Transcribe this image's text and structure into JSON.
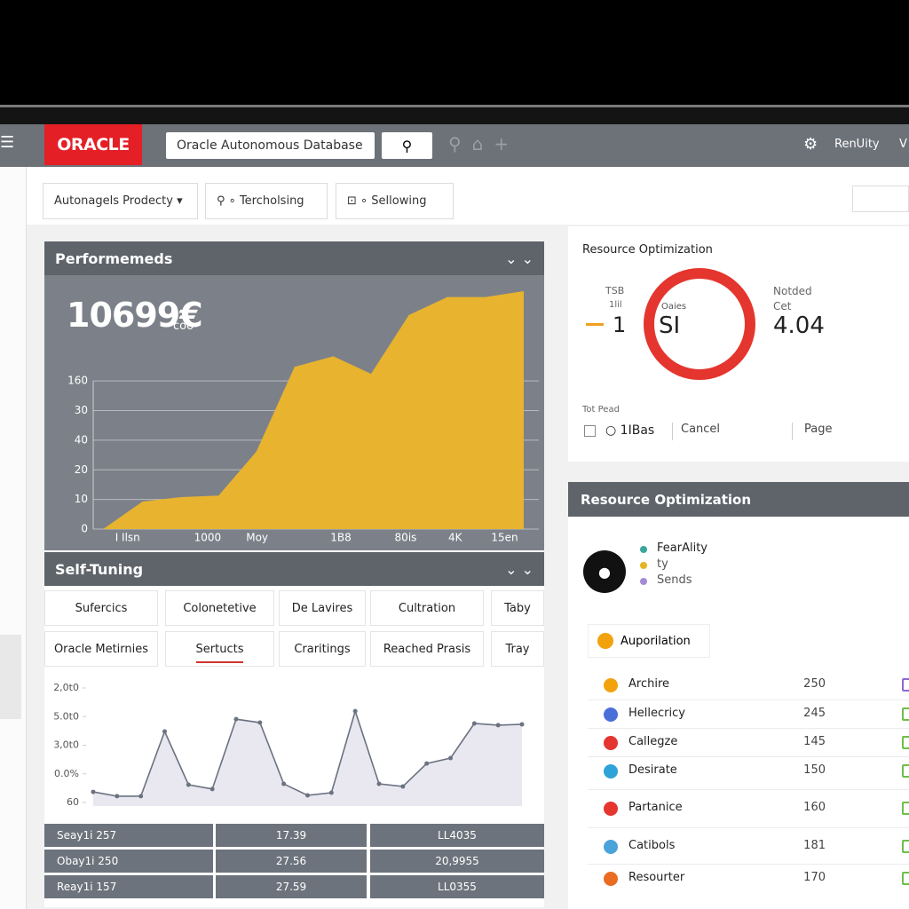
{
  "header": {
    "logo": "ORACLE",
    "search": "Oracle Autonomous Database",
    "user": "RenUity",
    "menu": "V"
  },
  "toolbar": {
    "items": [
      "Autonagels Prodecty",
      "Tercholsing",
      "Sellowing"
    ]
  },
  "performance": {
    "title": "Performemeds",
    "big_value": "10699€",
    "big_unit": "coo"
  },
  "chart_data": [
    {
      "type": "area",
      "color": "#e8b32e",
      "x": [
        0,
        1,
        2,
        3,
        4,
        5,
        6,
        7,
        8,
        9,
        10,
        11
      ],
      "values": [
        0,
        9,
        10.5,
        11,
        26,
        54.5,
        58,
        52,
        72,
        78,
        78,
        80
      ],
      "xlim": [
        0,
        11
      ],
      "ylim": [
        0,
        80
      ],
      "xticks": [
        {
          "value": 0.6,
          "label": "I Ilsn"
        },
        {
          "value": 2.7,
          "label": "1000"
        },
        {
          "value": 4,
          "label": "Moy"
        },
        {
          "value": 6.2,
          "label": "1B8"
        },
        {
          "value": 7.9,
          "label": "80is"
        },
        {
          "value": 9.2,
          "label": "4K"
        },
        {
          "value": 10.5,
          "label": "15en"
        }
      ],
      "yticks": [
        0,
        10,
        20,
        {
          "value": 30,
          "label": "40"
        },
        {
          "value": 40,
          "label": "30"
        },
        {
          "value": 50,
          "label": "160"
        }
      ],
      "grid": true
    },
    {
      "type": "line",
      "color": "#6b7280",
      "x": [
        0,
        1,
        2,
        3,
        4,
        5,
        6,
        7,
        8,
        9,
        10,
        11,
        12,
        13,
        14,
        15,
        16,
        17,
        18
      ],
      "values": [
        0.37,
        0.22,
        0.22,
        2.48,
        0.62,
        0.47,
        2.91,
        2.79,
        0.65,
        0.25,
        0.34,
        3.19,
        0.65,
        0.56,
        1.36,
        1.55,
        2.76,
        2.7,
        2.73
      ],
      "xlim": [
        0,
        18
      ],
      "ylim": [
        0,
        4
      ],
      "yticks": [
        {
          "value": 0,
          "label": "60"
        },
        {
          "value": 1,
          "label": "0.0%"
        },
        {
          "value": 2,
          "label": "3,0t0"
        },
        {
          "value": 3,
          "label": "5.0t0"
        },
        {
          "value": 4,
          "label": "2,0t0"
        }
      ],
      "grid": false
    }
  ],
  "self_tuning": {
    "title": "Self-Tuning",
    "tabs": [
      [
        "Sufercics",
        "Colonetetive",
        "De Lavires",
        "Cultration",
        "Taby"
      ],
      [
        "Oracle Metirnies",
        "Sertucts",
        "Craritings",
        "Reached Prasis",
        "Tray"
      ]
    ],
    "table": {
      "rows": [
        [
          "Seay1i 257",
          "17.39",
          "LL4035"
        ],
        [
          "Obay1i 250",
          "27.56",
          "20,9955"
        ],
        [
          "Reay1i 157",
          "27.59",
          "LL0355"
        ]
      ]
    }
  },
  "resource_card": {
    "title": "Resource Optimization",
    "left_labels": [
      "TSB",
      "1lil"
    ],
    "left_value": "1",
    "donut_labels": [
      "Oaies",
      "SI"
    ],
    "right_labels": [
      "Notded",
      "Cet"
    ],
    "right_value": "4.04",
    "footer": [
      "Tot Pead",
      "1IBas",
      "Cancel",
      "Page"
    ]
  },
  "resource_list": {
    "title": "Resource Optimization",
    "legend": [
      {
        "label": "FearAlity",
        "color": "#3aa69b"
      },
      {
        "label": "ty",
        "color": "#e6b422"
      },
      {
        "label": "Sends",
        "color": "#a58ad6"
      }
    ],
    "chip": "Auporilation",
    "rows": [
      {
        "name": "Archire",
        "value": 250
      },
      {
        "name": "Hellecricy",
        "value": 245
      },
      {
        "name": "Callegze",
        "value": 145
      },
      {
        "name": "Desirate",
        "value": 150
      },
      {
        "name": "Partanice",
        "value": 160
      },
      {
        "name": "Catibols",
        "value": 181
      },
      {
        "name": "Resourter",
        "value": 170
      }
    ]
  }
}
